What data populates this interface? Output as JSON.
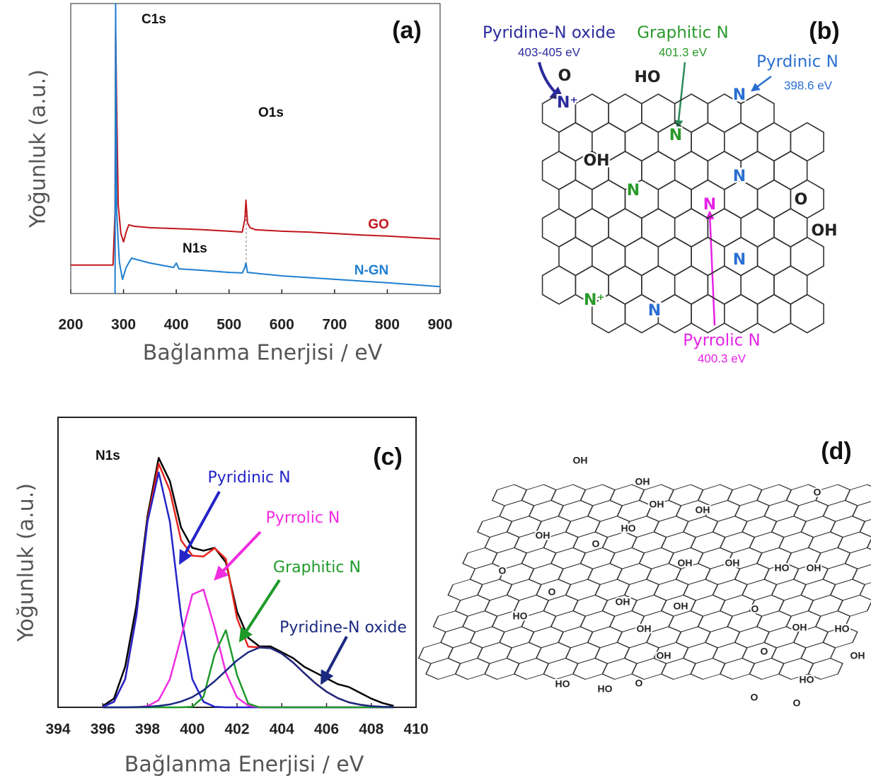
{
  "chart_data": [
    {
      "type": "line",
      "panel_label": "(a)",
      "x_label": "Bağlanma Enerjisi / eV",
      "y_label": "Yoğunluk (a.u.)",
      "annotations": [
        "C1s",
        "O1s",
        "N1s"
      ],
      "xlim": [
        200,
        900
      ],
      "xticks": [
        200,
        300,
        400,
        500,
        600,
        700,
        800,
        900
      ],
      "ylim": [
        0,
        100
      ],
      "series": [
        {
          "name": "GO",
          "color": "#c0161b",
          "x": [
            200,
            250,
            280,
            284,
            285,
            287,
            290,
            295,
            300,
            305,
            310,
            320,
            350,
            400,
            450,
            500,
            525,
            530,
            532,
            535,
            540,
            550,
            600,
            650,
            700,
            750,
            800,
            850,
            900
          ],
          "values": [
            9.8,
            9.8,
            9.8,
            28.0,
            92.7,
            64.6,
            30.5,
            20.7,
            17.8,
            21.2,
            23.7,
            23.2,
            22.7,
            22.4,
            22.0,
            21.5,
            21.2,
            25.6,
            32.2,
            24.4,
            22.7,
            22.0,
            21.5,
            21.2,
            20.7,
            20.2,
            19.8,
            19.3,
            18.8
          ]
        },
        {
          "name": "N-GN",
          "color": "#1f7fd1",
          "x": [
            284,
            285,
            287,
            292,
            298,
            305,
            315,
            350,
            395,
            400,
            405,
            450,
            500,
            525,
            530,
            532,
            535,
            600,
            700,
            800,
            900
          ],
          "values": [
            0,
            100,
            28.0,
            11.0,
            4.9,
            9.0,
            12.2,
            10.5,
            9.0,
            10.5,
            8.5,
            8.0,
            7.3,
            7.1,
            9.0,
            10.5,
            7.3,
            6.1,
            4.9,
            3.7,
            2.4
          ]
        }
      ]
    },
    {
      "type": "line",
      "panel_label": "(c)",
      "x_label": "Bağlanma Enerjisi / eV",
      "y_label": "Yoğunluk (a.u.)",
      "annotations": [
        "N1s"
      ],
      "xlim": [
        394,
        410
      ],
      "xticks": [
        394,
        396,
        398,
        400,
        402,
        404,
        406,
        408,
        410
      ],
      "ylim": [
        0,
        100
      ],
      "x": [
        396,
        396.5,
        397,
        397.5,
        398,
        398.5,
        399,
        399.5,
        400,
        400.5,
        401,
        401.5,
        402,
        402.5,
        403,
        403.5,
        404,
        404.5,
        405,
        405.5,
        406,
        406.5,
        407,
        407.5,
        408,
        408.5,
        409
      ],
      "series": [
        {
          "color": "#000000",
          "values": [
            0.5,
            3,
            14,
            35,
            66,
            86,
            78,
            62,
            55,
            54,
            55,
            50,
            33,
            24,
            21,
            21,
            19,
            17,
            14,
            12,
            10,
            8,
            7,
            5,
            3,
            1.5,
            0.5
          ]
        },
        {
          "color": "#e8241c",
          "values": [
            0.2,
            1.9,
            9.7,
            31.6,
            64.6,
            84.0,
            74.7,
            57.6,
            52.3,
            52.0,
            54.9,
            51.2,
            30.7,
            20.9,
            20.7,
            20.4,
            18.5,
            15.5,
            11.8,
            8.3,
            5.4,
            3.2,
            1.7,
            0.9,
            0.4,
            0.2,
            0.1
          ]
        },
        {
          "name": "Pyridinic N",
          "color": "#2424c8",
          "values": [
            0.2,
            1.9,
            9.7,
            31.5,
            64.0,
            81,
            64.0,
            31.5,
            9.7,
            1.9,
            0.2,
            0.0,
            0,
            0,
            0,
            0,
            0,
            0,
            0,
            0,
            0,
            0,
            0,
            0,
            0,
            0,
            0
          ]
        },
        {
          "name": "Pyrrolic N",
          "color": "#f02ce0",
          "values": [
            0,
            0,
            0,
            0.0,
            0.4,
            2.5,
            9.7,
            24.1,
            38.9,
            40.6,
            27.4,
            12.0,
            3.4,
            0.6,
            0.1,
            0,
            0,
            0,
            0,
            0,
            0,
            0,
            0,
            0,
            0,
            0,
            0
          ]
        },
        {
          "name": "Graphitic N",
          "color": "#1e9a2a",
          "values": [
            0,
            0,
            0,
            0,
            0,
            0,
            0,
            0,
            0.2,
            3.6,
            18.3,
            26.6,
            11.1,
            1.3,
            0.0,
            0,
            0,
            0,
            0,
            0,
            0,
            0,
            0,
            0,
            0,
            0,
            0
          ]
        },
        {
          "name": "Pyridine-N oxide",
          "color": "#1b2a80",
          "values": [
            0.0,
            0.0,
            0.0,
            0.1,
            0.2,
            0.5,
            1.0,
            2.0,
            3.5,
            5.9,
            9.0,
            12.6,
            16.2,
            19.0,
            20.6,
            20.4,
            18.5,
            15.5,
            11.8,
            8.3,
            5.4,
            3.2,
            1.7,
            0.9,
            0.4,
            0.2,
            0.1
          ]
        }
      ]
    }
  ],
  "structure_b": {
    "panel_label": "(b)",
    "callouts": [
      {
        "name": "Pyridine-N oxide",
        "energy": "403-405 eV"
      },
      {
        "name": "Graphitic N",
        "energy": "401.3 eV"
      },
      {
        "name": "Pyrdinic N",
        "energy": "398.6 eV"
      },
      {
        "name": "Pyrrolic N",
        "energy": "400.3 eV"
      }
    ],
    "atoms": [
      "O",
      "N⁺",
      "HO",
      "OH",
      "N",
      "N",
      "N",
      "N",
      "N",
      "O",
      "OH",
      "N",
      "N⁺",
      "N"
    ]
  },
  "structure_d": {
    "panel_label": "(d)",
    "atoms": [
      "OH",
      "OH",
      "OH",
      "OH",
      "HO",
      "OH",
      "O",
      "O",
      "OH",
      "OH",
      "HO",
      "OH",
      "O",
      "HO",
      "OH",
      "OH",
      "O",
      "OH",
      "HO",
      "OH",
      "O",
      "OH",
      "HO",
      "HO",
      "O",
      "O",
      "O",
      "HO",
      "OH",
      "O"
    ]
  }
}
